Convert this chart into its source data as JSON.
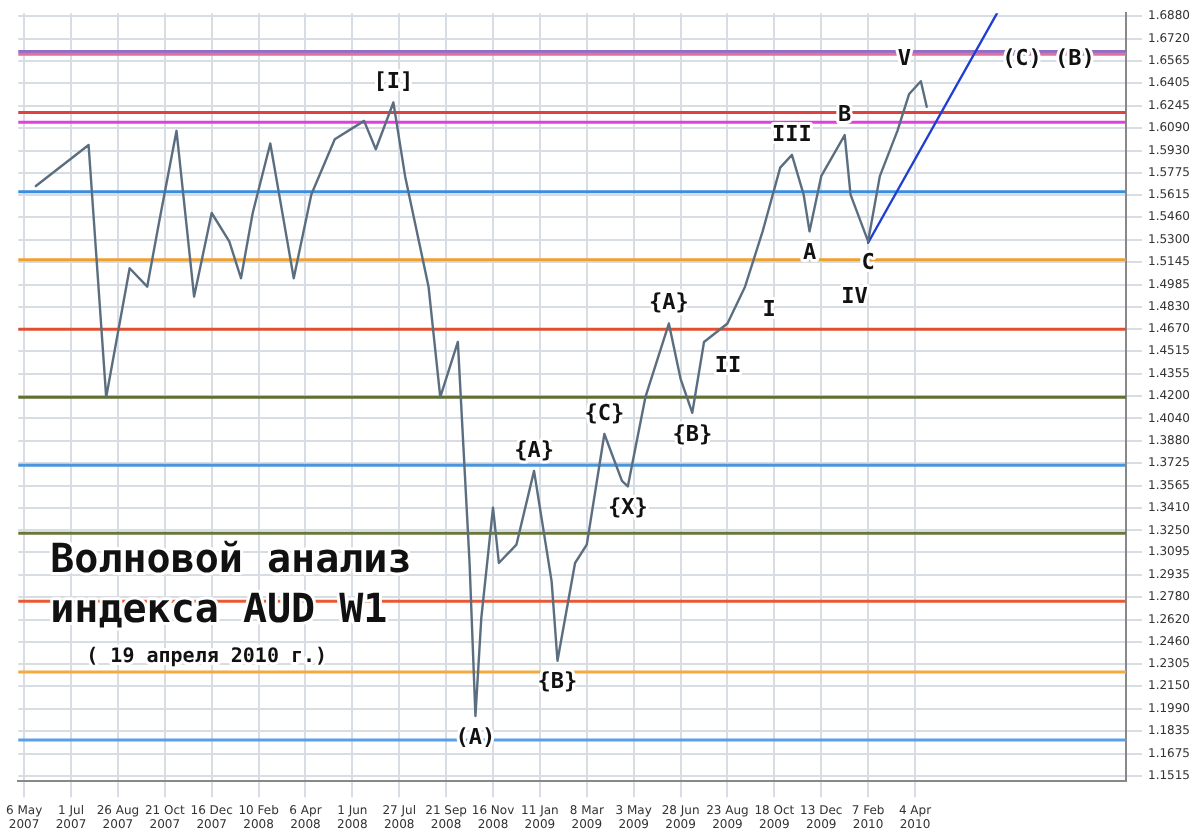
{
  "chart_data": {
    "type": "line",
    "title": "Волновой анализ индекса AUD W1",
    "subtitle": "( 19 апреля 2010 г.)",
    "xlim": [
      "2007-04-29",
      "2010-12-12"
    ],
    "xticks": [
      {
        "value": "2007-05-06",
        "label": "6 May 2007"
      },
      {
        "value": "2007-07-01",
        "label": "1 Jul 2007"
      },
      {
        "value": "2007-08-26",
        "label": "26 Aug 2007"
      },
      {
        "value": "2007-10-21",
        "label": "21 Oct 2007"
      },
      {
        "value": "2007-12-16",
        "label": "16 Dec 2007"
      },
      {
        "value": "2008-02-10",
        "label": "10 Feb 2008"
      },
      {
        "value": "2008-04-06",
        "label": "6 Apr 2008"
      },
      {
        "value": "2008-06-01",
        "label": "1 Jun 2008"
      },
      {
        "value": "2008-07-27",
        "label": "27 Jul 2008"
      },
      {
        "value": "2008-09-21",
        "label": "21 Sep 2008"
      },
      {
        "value": "2008-11-16",
        "label": "16 Nov 2008"
      },
      {
        "value": "2009-01-11",
        "label": "11 Jan 2009"
      },
      {
        "value": "2009-03-08",
        "label": "8 Mar 2009"
      },
      {
        "value": "2009-05-03",
        "label": "3 May 2009"
      },
      {
        "value": "2009-06-28",
        "label": "28 Jun 2009"
      },
      {
        "value": "2009-08-23",
        "label": "23 Aug 2009"
      },
      {
        "value": "2009-10-18",
        "label": "18 Oct 2009"
      },
      {
        "value": "2009-12-13",
        "label": "13 Dec 2009"
      },
      {
        "value": "2010-02-07",
        "label": "7 Feb 2010"
      },
      {
        "value": "2010-04-04",
        "label": "4 Apr 2010"
      }
    ],
    "ylim": [
      1.148,
      1.69
    ],
    "yticks": [
      {
        "value": 1.688,
        "label": "1.6880"
      },
      {
        "value": 1.672,
        "label": "1.6720"
      },
      {
        "value": 1.6565,
        "label": "1.6565"
      },
      {
        "value": 1.6405,
        "label": "1.6405"
      },
      {
        "value": 1.6245,
        "label": "1.6245"
      },
      {
        "value": 1.609,
        "label": "1.6090"
      },
      {
        "value": 1.593,
        "label": "1.5930"
      },
      {
        "value": 1.5775,
        "label": "1.5775"
      },
      {
        "value": 1.5615,
        "label": "1.5615"
      },
      {
        "value": 1.546,
        "label": "1.5460"
      },
      {
        "value": 1.53,
        "label": "1.5300"
      },
      {
        "value": 1.5145,
        "label": "1.5145"
      },
      {
        "value": 1.4985,
        "label": "1.4985"
      },
      {
        "value": 1.483,
        "label": "1.4830"
      },
      {
        "value": 1.467,
        "label": "1.4670"
      },
      {
        "value": 1.4515,
        "label": "1.4515"
      },
      {
        "value": 1.4355,
        "label": "1.4355"
      },
      {
        "value": 1.42,
        "label": "1.4200"
      },
      {
        "value": 1.404,
        "label": "1.4040"
      },
      {
        "value": 1.388,
        "label": "1.3880"
      },
      {
        "value": 1.3725,
        "label": "1.3725"
      },
      {
        "value": 1.3565,
        "label": "1.3565"
      },
      {
        "value": 1.341,
        "label": "1.3410"
      },
      {
        "value": 1.325,
        "label": "1.3250"
      },
      {
        "value": 1.3095,
        "label": "1.3095"
      },
      {
        "value": 1.2935,
        "label": "1.2935"
      },
      {
        "value": 1.278,
        "label": "1.2780"
      },
      {
        "value": 1.262,
        "label": "1.2620"
      },
      {
        "value": 1.246,
        "label": "1.2460"
      },
      {
        "value": 1.2305,
        "label": "1.2305"
      },
      {
        "value": 1.215,
        "label": "1.2150"
      },
      {
        "value": 1.199,
        "label": "1.1990"
      },
      {
        "value": 1.1835,
        "label": "1.1835"
      },
      {
        "value": 1.1675,
        "label": "1.1675"
      },
      {
        "value": 1.1515,
        "label": "1.1515"
      }
    ],
    "grid": true,
    "legend": false,
    "marker": "none",
    "line_style": "solid",
    "series": [
      {
        "color": "#5a6e80",
        "x": [
          "2007-05-20",
          "2007-07-22",
          "2007-08-12",
          "2007-09-09",
          "2007-09-30",
          "2007-10-14",
          "2007-11-04",
          "2007-11-25",
          "2007-12-16",
          "2008-01-06",
          "2008-01-20",
          "2008-02-03",
          "2008-02-24",
          "2008-03-23",
          "2008-04-13",
          "2008-05-11",
          "2008-06-15",
          "2008-06-29",
          "2008-07-20",
          "2008-08-03",
          "2008-08-17",
          "2008-08-31",
          "2008-09-14",
          "2008-10-05",
          "2008-10-19",
          "2008-10-26",
          "2008-11-02",
          "2008-11-16",
          "2008-11-23",
          "2008-12-14",
          "2009-01-04",
          "2009-01-25",
          "2009-02-01",
          "2009-02-22",
          "2009-03-08",
          "2009-03-29",
          "2009-04-19",
          "2009-04-26",
          "2009-05-17",
          "2009-06-14",
          "2009-06-28",
          "2009-07-12",
          "2009-07-26",
          "2009-08-23",
          "2009-09-13",
          "2009-10-04",
          "2009-10-25",
          "2009-11-08",
          "2009-11-22",
          "2009-11-29",
          "2009-12-13",
          "2010-01-10",
          "2010-01-17",
          "2010-02-07",
          "2010-02-21",
          "2010-03-14",
          "2010-03-28",
          "2010-04-11",
          "2010-04-18"
        ],
        "values": [
          1.568,
          1.597,
          1.419,
          1.51,
          1.497,
          1.542,
          1.607,
          1.49,
          1.549,
          1.529,
          1.503,
          1.549,
          1.598,
          1.503,
          1.562,
          1.601,
          1.614,
          1.594,
          1.627,
          1.575,
          1.536,
          1.497,
          1.419,
          1.458,
          1.302,
          1.194,
          1.263,
          1.341,
          1.302,
          1.315,
          1.367,
          1.289,
          1.233,
          1.302,
          1.315,
          1.393,
          1.36,
          1.356,
          1.419,
          1.471,
          1.432,
          1.408,
          1.458,
          1.471,
          1.497,
          1.536,
          1.581,
          1.59,
          1.562,
          1.536,
          1.575,
          1.604,
          1.562,
          1.529,
          1.575,
          1.607,
          1.633,
          1.642,
          1.624
        ]
      },
      {
        "type": "line",
        "color": "#1f3fd0",
        "x": [
          "2010-02-07",
          "2010-07-11"
        ],
        "values": [
          1.528,
          1.69
        ]
      }
    ],
    "ref_lines": [
      {
        "axis": "y",
        "value": 1.663,
        "color": "#8c6fc8"
      },
      {
        "axis": "y",
        "value": 1.661,
        "color": "#e070a0"
      },
      {
        "axis": "y",
        "value": 1.62,
        "color": "#e04040"
      },
      {
        "axis": "y",
        "value": 1.613,
        "color": "#e040e0"
      },
      {
        "axis": "y",
        "value": 1.564,
        "color": "#3a8ee0"
      },
      {
        "axis": "y",
        "value": 1.516,
        "color": "#f0a030"
      },
      {
        "axis": "y",
        "value": 1.467,
        "color": "#e05030"
      },
      {
        "axis": "y",
        "value": 1.419,
        "color": "#607030"
      },
      {
        "axis": "y",
        "value": 1.371,
        "color": "#4a96dc"
      },
      {
        "axis": "y",
        "value": 1.323,
        "color": "#687838"
      },
      {
        "axis": "y",
        "value": 1.275,
        "color": "#e85a36"
      },
      {
        "axis": "y",
        "value": 1.225,
        "color": "#f4aa40"
      },
      {
        "axis": "y",
        "value": 1.177,
        "color": "#5aa0e8"
      }
    ],
    "annotations": [
      {
        "text": "[I]",
        "x": "2008-07-20",
        "y": 1.627
      },
      {
        "text": "(A)",
        "x": "2008-10-26",
        "y": 1.194
      },
      {
        "text": "{A}",
        "x": "2009-01-04",
        "y": 1.367
      },
      {
        "text": "{B}",
        "x": "2009-02-01",
        "y": 1.233
      },
      {
        "text": "{C}",
        "x": "2009-03-29",
        "y": 1.393
      },
      {
        "text": "{X}",
        "x": "2009-04-26",
        "y": 1.356
      },
      {
        "text": "{A}",
        "x": "2009-06-14",
        "y": 1.471
      },
      {
        "text": "{B}",
        "x": "2009-07-12",
        "y": 1.408
      },
      {
        "text": "I",
        "x": "2009-09-13",
        "y": 1.497
      },
      {
        "text": "II",
        "x": "2009-07-26",
        "y": 1.458
      },
      {
        "text": "III",
        "x": "2009-11-08",
        "y": 1.59
      },
      {
        "text": "A",
        "x": "2009-11-29",
        "y": 1.536
      },
      {
        "text": "B",
        "x": "2010-01-10",
        "y": 1.604
      },
      {
        "text": "C",
        "x": "2010-02-07",
        "y": 1.529
      },
      "IV",
      "V",
      "(C) (B)"
    ]
  }
}
